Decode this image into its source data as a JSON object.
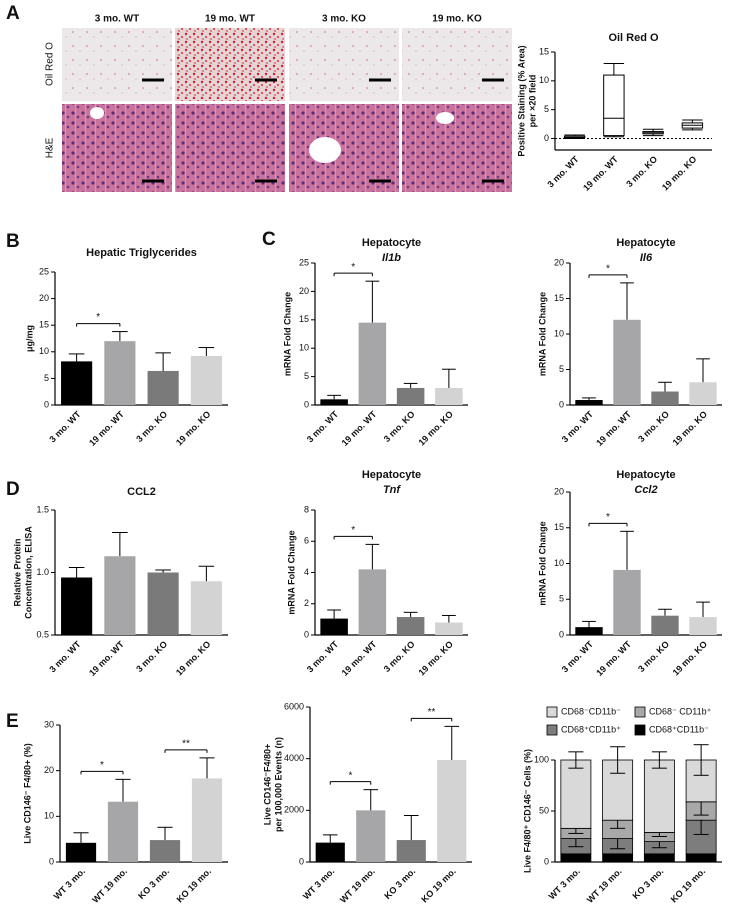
{
  "figure": {
    "panel_labels": [
      "A",
      "B",
      "C",
      "D",
      "E"
    ],
    "columns": [
      "3 mo. WT",
      "19 mo. WT",
      "3 mo. KO",
      "19 mo. KO"
    ],
    "rows": [
      "Oil Red O",
      "H&E"
    ]
  },
  "chart_data": [
    {
      "type": "box",
      "title": "Oil Red O",
      "y_label": [
        "Positive Staining (% Area)",
        "per ×20 field"
      ],
      "categories": [
        "3 mo. WT",
        "19 mo. WT",
        "3 mo. KO",
        "19 mo. KO"
      ],
      "boxes": [
        {
          "min": 0,
          "q1": 0.1,
          "median": 0.2,
          "q3": 0.4,
          "max": 0.6
        },
        {
          "min": 0.3,
          "q1": 0.5,
          "median": 3.5,
          "q3": 11,
          "max": 13
        },
        {
          "min": 0.5,
          "q1": 0.8,
          "median": 1,
          "q3": 1.2,
          "max": 1.6
        },
        {
          "min": 1.5,
          "q1": 1.8,
          "median": 2.3,
          "q3": 2.7,
          "max": 3.2
        }
      ],
      "reference_line": 0,
      "ylim": [
        -2,
        15
      ],
      "yticks": [
        0,
        5,
        10,
        15
      ]
    },
    {
      "type": "bar",
      "title": "Hepatic Triglycerides",
      "y_label": "μg/mg",
      "categories": [
        "3 mo. WT",
        "19 mo. WT",
        "3 mo. KO",
        "19 mo. KO"
      ],
      "values": [
        8.2,
        12,
        6.4,
        9.2
      ],
      "errors": [
        1.4,
        1.8,
        3.4,
        1.6
      ],
      "colors": [
        "#000000",
        "#a6a6a8",
        "#7a7a7a",
        "#d3d3d3"
      ],
      "ylim": [
        0,
        25
      ],
      "yticks": [
        0,
        5,
        10,
        15,
        20,
        25
      ],
      "significance": [
        {
          "pair": [
            "3 mo. WT",
            "19 mo. WT"
          ],
          "label": "*"
        }
      ]
    },
    {
      "type": "bar",
      "title": "Hepatocyte",
      "subtitle": "Il1b",
      "y_label": "mRNA Fold Change",
      "categories": [
        "3 mo. WT",
        "19 mo. WT",
        "3 mo. KO",
        "19 mo. KO"
      ],
      "values": [
        1,
        14.5,
        3,
        3
      ],
      "errors": [
        0.7,
        7.3,
        0.8,
        3.3
      ],
      "colors": [
        "#000000",
        "#a6a6a8",
        "#7a7a7a",
        "#d3d3d3"
      ],
      "ylim": [
        0,
        25
      ],
      "yticks": [
        0,
        5,
        10,
        15,
        20,
        25
      ],
      "significance": [
        {
          "pair": [
            "3 mo. WT",
            "19 mo. WT"
          ],
          "label": "*"
        }
      ]
    },
    {
      "type": "bar",
      "title": "Hepatocyte",
      "subtitle": "Il6",
      "y_label": "mRNA Fold Change",
      "categories": [
        "3 mo. WT",
        "19 mo. WT",
        "3 mo. KO",
        "19 mo. KO"
      ],
      "values": [
        0.7,
        12,
        1.9,
        3.2
      ],
      "errors": [
        0.3,
        5.2,
        1.3,
        3.3
      ],
      "colors": [
        "#000000",
        "#a6a6a8",
        "#7a7a7a",
        "#d3d3d3"
      ],
      "ylim": [
        0,
        20
      ],
      "yticks": [
        0,
        5,
        10,
        15,
        20
      ],
      "significance": [
        {
          "pair": [
            "3 mo. WT",
            "19 mo. WT"
          ],
          "label": "*"
        }
      ]
    },
    {
      "type": "bar",
      "title": "CCL2",
      "y_label": [
        "Relative Protein",
        "Concentration, ELISA"
      ],
      "categories": [
        "3 mo. WT",
        "19 mo. WT",
        "3 mo. KO",
        "19 mo. KO"
      ],
      "values": [
        0.96,
        1.13,
        1.0,
        0.93
      ],
      "errors": [
        0.08,
        0.19,
        0.02,
        0.12
      ],
      "colors": [
        "#000000",
        "#a6a6a8",
        "#7a7a7a",
        "#d3d3d3"
      ],
      "ylim": [
        0.5,
        1.5
      ],
      "yticks": [
        {
          "value": 0.5,
          "label": "0.5"
        },
        {
          "value": 1,
          "label": "1.0"
        },
        {
          "value": 1.5,
          "label": "1.5"
        }
      ]
    },
    {
      "type": "bar",
      "title": "Hepatocyte",
      "subtitle": "Tnf",
      "y_label": "mRNA Fold Change",
      "categories": [
        "3 mo. WT",
        "19 mo. WT",
        "3 mo. KO",
        "19 mo. KO"
      ],
      "values": [
        1.05,
        4.2,
        1.15,
        0.8
      ],
      "errors": [
        0.55,
        1.6,
        0.3,
        0.45
      ],
      "colors": [
        "#000000",
        "#a6a6a8",
        "#7a7a7a",
        "#d3d3d3"
      ],
      "ylim": [
        0,
        8
      ],
      "yticks": [
        0,
        2,
        4,
        6,
        8
      ],
      "significance": [
        {
          "pair": [
            "3 mo. WT",
            "19 mo. WT"
          ],
          "label": "*"
        }
      ]
    },
    {
      "type": "bar",
      "title": "Hepatocyte",
      "subtitle": "Ccl2",
      "y_label": "mRNA Fold Change",
      "categories": [
        "3 mo. WT",
        "19 mo. WT",
        "3 mo. KO",
        "19 mo. KO"
      ],
      "values": [
        1.1,
        9.1,
        2.7,
        2.5
      ],
      "errors": [
        0.8,
        5.4,
        0.9,
        2.1
      ],
      "colors": [
        "#000000",
        "#a6a6a8",
        "#7a7a7a",
        "#d3d3d3"
      ],
      "ylim": [
        0,
        20
      ],
      "yticks": [
        0,
        5,
        10,
        15,
        20
      ],
      "significance": [
        {
          "pair": [
            "3 mo. WT",
            "19 mo. WT"
          ],
          "label": "*"
        }
      ]
    },
    {
      "type": "bar",
      "y_label": "Live CD146⁻ F4/80+ (%)",
      "categories": [
        "WT 3 mo.",
        "WT 19 mo.",
        "KO 3 mo.",
        "KO 19 mo."
      ],
      "values": [
        4.2,
        13.2,
        4.8,
        18.3
      ],
      "errors": [
        2.2,
        4.9,
        2.8,
        4.5
      ],
      "colors": [
        "#000000",
        "#a6a6a8",
        "#7a7a7a",
        "#d3d3d3"
      ],
      "ylim": [
        0,
        30
      ],
      "yticks": [
        0,
        10,
        20,
        30
      ],
      "significance": [
        {
          "pair": [
            "WT 3 mo.",
            "WT 19 mo."
          ],
          "label": "*"
        },
        {
          "pair": [
            "KO 3 mo.",
            "KO 19 mo."
          ],
          "label": "**"
        }
      ]
    },
    {
      "type": "bar",
      "y_label": [
        "Live CD146⁻F4/80+",
        "per 100,000 Events (n)"
      ],
      "categories": [
        "WT 3 mo.",
        "WT 19 mo.",
        "KO 3 mo.",
        "KO 19 mo."
      ],
      "values": [
        750,
        2000,
        850,
        3950
      ],
      "errors": [
        300,
        800,
        950,
        1300
      ],
      "colors": [
        "#000000",
        "#a6a6a8",
        "#7a7a7a",
        "#d3d3d3"
      ],
      "ylim": [
        0,
        6000
      ],
      "yticks": [
        0,
        2000,
        4000,
        6000
      ],
      "significance": [
        {
          "pair": [
            "WT 3 mo.",
            "WT 19 mo."
          ],
          "label": "*"
        },
        {
          "pair": [
            "KO 3 mo.",
            "KO 19 mo."
          ],
          "label": "**"
        }
      ]
    },
    {
      "type": "stacked_bar",
      "y_label": "Live F4/80⁺ CD146⁻ Cells (%)",
      "categories": [
        "WT 3 mo.",
        "WT 19 mo.",
        "KO 3 mo.",
        "KO 19 mo."
      ],
      "series": [
        {
          "name": "CD68⁺CD11b⁻",
          "color": "#000000",
          "values": [
            8,
            8,
            8,
            8
          ],
          "errors": [
            5,
            3,
            3,
            4
          ]
        },
        {
          "name": "CD68⁺CD11b⁺",
          "color": "#7d7d7d",
          "values": [
            15,
            15,
            12,
            33
          ],
          "errors": [
            8,
            10,
            6,
            14
          ]
        },
        {
          "name": "CD68⁻ CD11b⁺",
          "color": "#a8a8a8",
          "values": [
            10,
            18,
            9,
            18
          ],
          "errors": [
            5,
            8,
            4,
            13
          ]
        },
        {
          "name": "CD68⁻CD11b⁻",
          "color": "#d9d9d9",
          "values": [
            67,
            59,
            71,
            41
          ],
          "errors": [
            8,
            13,
            8,
            15
          ]
        }
      ],
      "ylim": [
        0,
        100
      ],
      "yticks": [
        0,
        50,
        100
      ]
    }
  ]
}
